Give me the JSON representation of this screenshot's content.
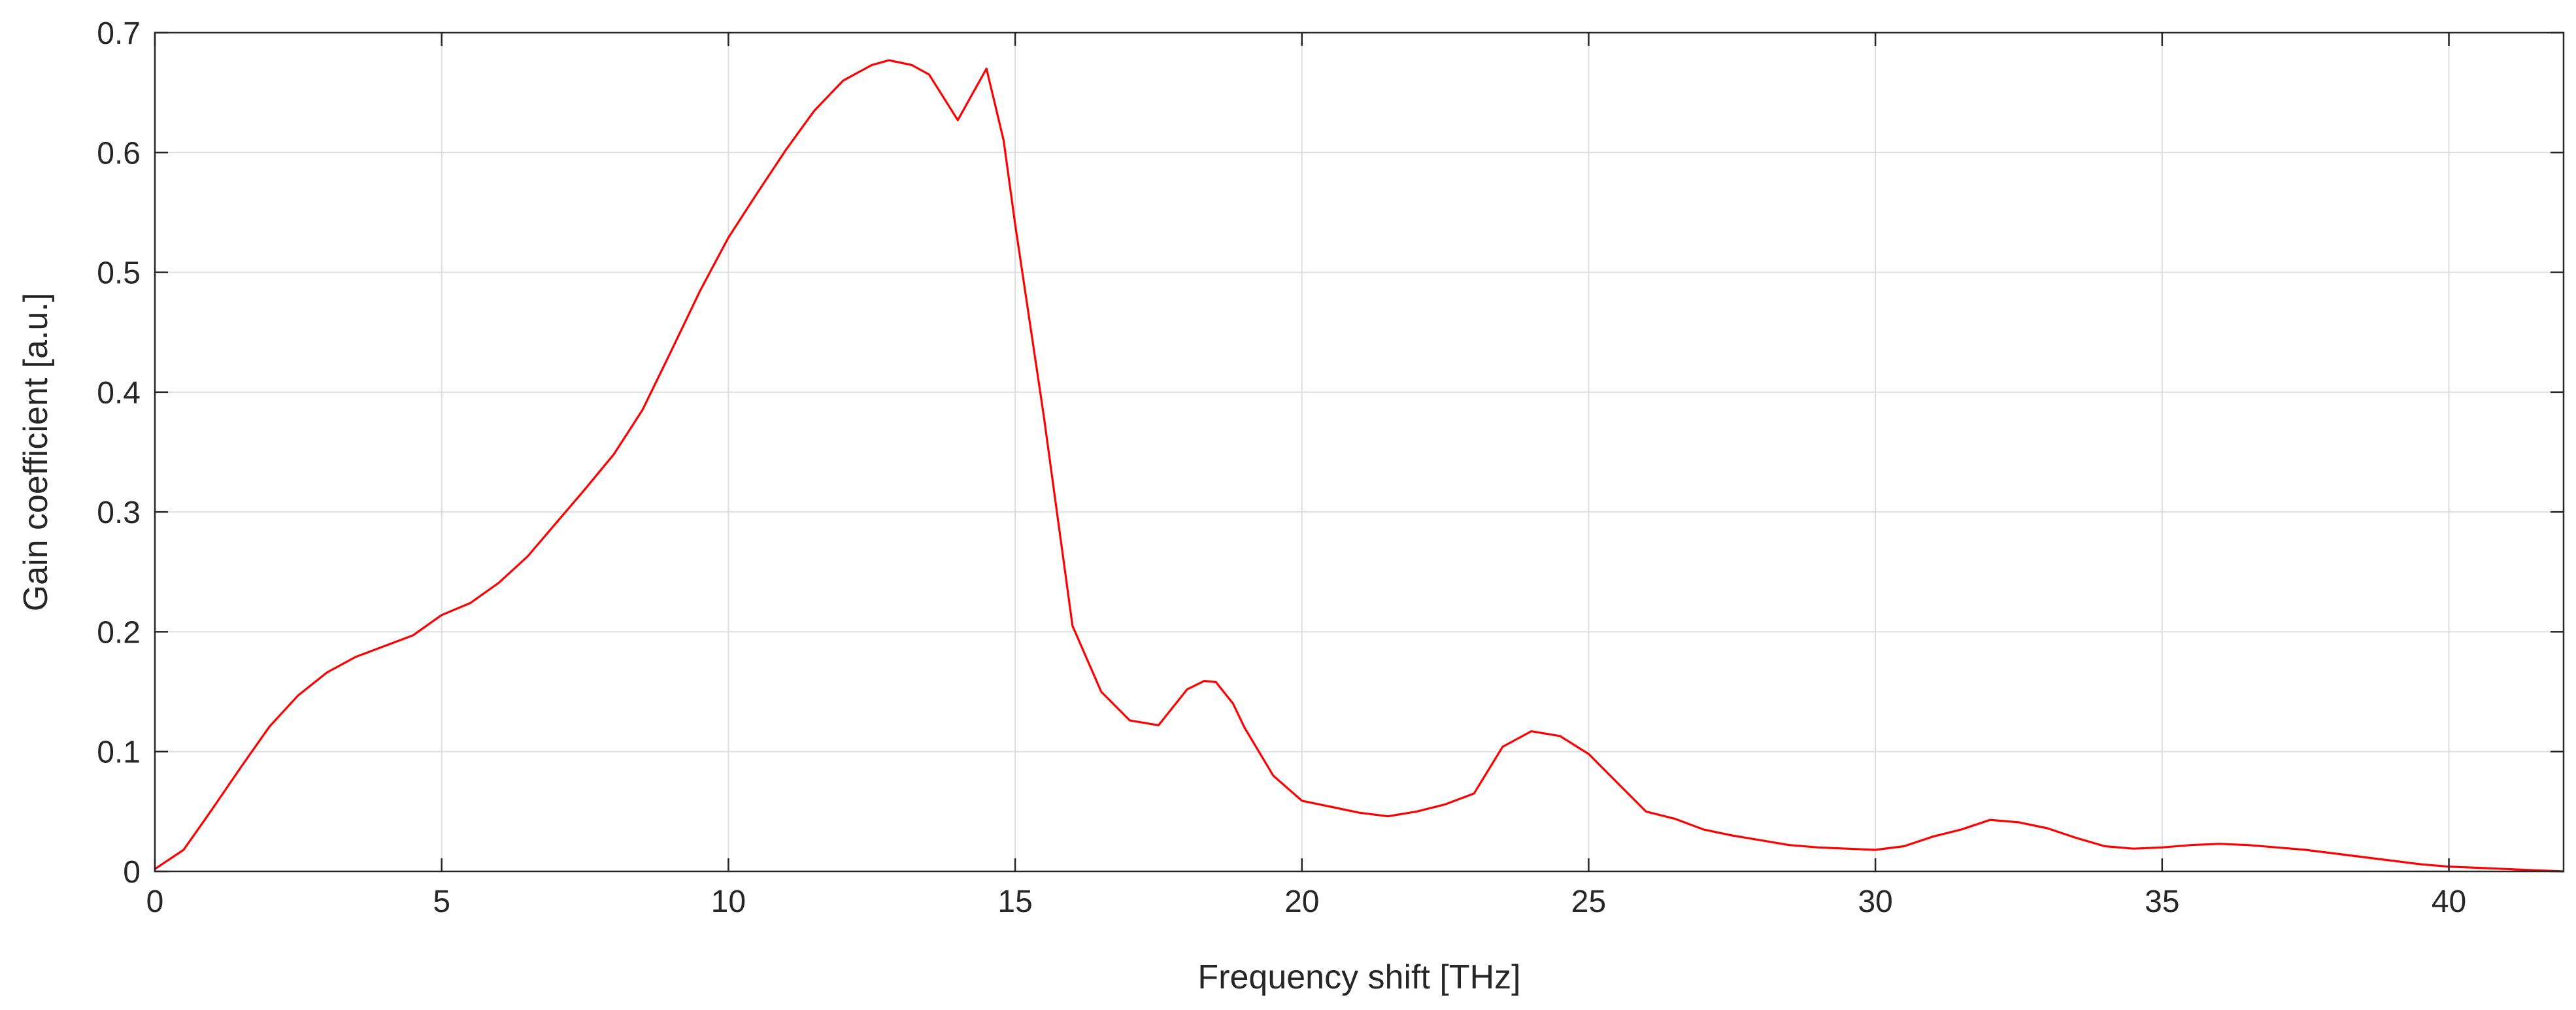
{
  "chart_data": {
    "type": "line",
    "title": "",
    "xlabel": "Frequency shift [THz]",
    "ylabel": "Gain coefficient [a.u.]",
    "xlim": [
      0,
      42
    ],
    "ylim": [
      0,
      0.7
    ],
    "xticks": [
      0,
      5,
      10,
      15,
      20,
      25,
      30,
      35,
      40
    ],
    "yticks": [
      0,
      0.1,
      0.2,
      0.3,
      0.4,
      0.5,
      0.6,
      0.7
    ],
    "xtick_labels": [
      "0",
      "5",
      "10",
      "15",
      "20",
      "25",
      "30",
      "35",
      "40"
    ],
    "ytick_labels": [
      "0",
      "0.1",
      "0.2",
      "0.3",
      "0.4",
      "0.5",
      "0.6",
      "0.7"
    ],
    "grid": true,
    "series": [
      {
        "color": "#ff0000",
        "x": [
          0,
          0.5,
          1,
          1.5,
          2,
          2.5,
          3,
          3.5,
          4,
          4.5,
          5,
          5.5,
          6,
          6.5,
          7,
          7.5,
          8,
          8.5,
          9,
          9.5,
          10,
          10.5,
          11,
          11.5,
          12,
          12.5,
          12.8,
          13.2,
          13.5,
          14,
          14.5,
          14.8,
          15,
          15.5,
          16,
          16.5,
          17,
          17.5,
          18,
          18.3,
          18.5,
          18.8,
          19,
          19.5,
          20,
          20.5,
          21,
          21.5,
          22,
          22.5,
          23,
          23.5,
          24,
          24.5,
          25,
          25.5,
          26,
          26.5,
          27,
          27.5,
          28,
          28.5,
          29,
          29.5,
          30,
          30.5,
          31,
          31.5,
          32,
          32.5,
          33,
          33.5,
          34,
          34.5,
          35,
          35.5,
          36,
          36.5,
          37,
          37.5,
          38,
          38.5,
          39,
          39.5,
          40,
          40.5,
          41,
          41.5,
          42
        ],
        "y": [
          0.002,
          0.018,
          0.052,
          0.087,
          0.121,
          0.147,
          0.166,
          0.179,
          0.188,
          0.197,
          0.214,
          0.224,
          0.241,
          0.263,
          0.291,
          0.319,
          0.348,
          0.385,
          0.434,
          0.484,
          0.529,
          0.566,
          0.602,
          0.635,
          0.66,
          0.673,
          0.677,
          0.673,
          0.665,
          0.627,
          0.67,
          0.61,
          0.54,
          0.38,
          0.205,
          0.15,
          0.126,
          0.122,
          0.152,
          0.159,
          0.158,
          0.14,
          0.12,
          0.08,
          0.059,
          0.054,
          0.049,
          0.046,
          0.05,
          0.056,
          0.065,
          0.104,
          0.117,
          0.113,
          0.098,
          0.074,
          0.05,
          0.044,
          0.035,
          0.03,
          0.026,
          0.022,
          0.02,
          0.019,
          0.018,
          0.021,
          0.029,
          0.035,
          0.043,
          0.041,
          0.036,
          0.028,
          0.021,
          0.019,
          0.02,
          0.022,
          0.023,
          0.022,
          0.02,
          0.018,
          0.015,
          0.012,
          0.009,
          0.006,
          0.004,
          0.003,
          0.002,
          0.001,
          0.0
        ]
      }
    ]
  }
}
